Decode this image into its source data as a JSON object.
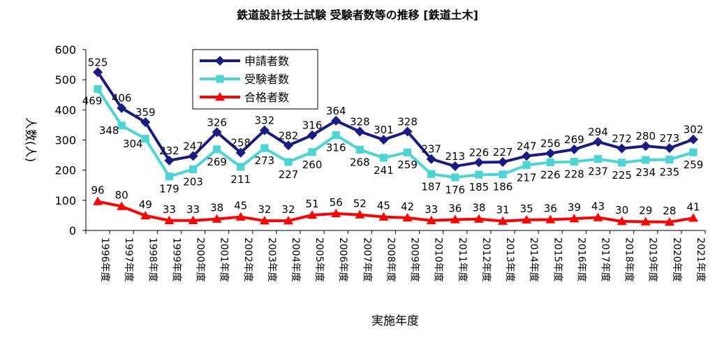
{
  "chart_data": {
    "type": "line",
    "title": "鉄道設計技士試験 受験者数等の推移 [鉄道土木]",
    "xlabel": "実施年度",
    "ylabel": "人数(人)",
    "ylim": [
      0,
      600
    ],
    "yticks": [
      0,
      100,
      200,
      300,
      400,
      500,
      600
    ],
    "grid": false,
    "legend_position": "top-left",
    "categories": [
      "1996年度",
      "1997年度",
      "1998年度",
      "1999年度",
      "2000年度",
      "2001年度",
      "2002年度",
      "2003年度",
      "2004年度",
      "2005年度",
      "2006年度",
      "2007年度",
      "2008年度",
      "2009年度",
      "2010年度",
      "2011年度",
      "2012年度",
      "2013年度",
      "2014年度",
      "2015年度",
      "2016年度",
      "2017年度",
      "2018年度",
      "2019年度",
      "2020年度",
      "2021年度"
    ],
    "series": [
      {
        "name": "申請者数",
        "color": "#1a1a80",
        "marker": "diamond",
        "values": [
          525,
          406,
          359,
          232,
          247,
          326,
          258,
          332,
          282,
          316,
          364,
          328,
          301,
          328,
          237,
          213,
          226,
          227,
          247,
          256,
          269,
          294,
          272,
          280,
          273,
          302
        ]
      },
      {
        "name": "受験者数",
        "color": "#4fd4d4",
        "marker": "square",
        "values": [
          469,
          348,
          304,
          179,
          203,
          269,
          211,
          273,
          227,
          260,
          316,
          268,
          241,
          259,
          187,
          176,
          185,
          186,
          217,
          226,
          228,
          237,
          225,
          234,
          235,
          259
        ]
      },
      {
        "name": "合格者数",
        "color": "#ff0000",
        "marker": "triangle",
        "values": [
          96,
          80,
          49,
          33,
          33,
          38,
          45,
          32,
          32,
          51,
          56,
          52,
          45,
          42,
          33,
          36,
          38,
          31,
          35,
          36,
          39,
          43,
          30,
          29,
          28,
          41
        ]
      }
    ]
  }
}
